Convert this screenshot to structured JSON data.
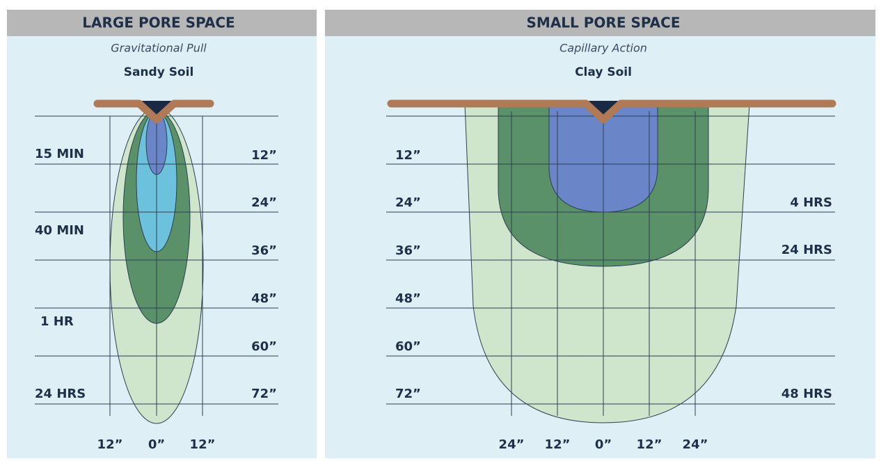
{
  "panels": [
    {
      "header": "LARGE PORE SPACE",
      "subtitle": "Gravitational Pull",
      "soil": "Sandy Soil",
      "time_labels": [
        "15 MIN",
        "40 MIN",
        "1 HR",
        "24 HRS"
      ],
      "depth_labels": [
        "12”",
        "24”",
        "36”",
        "48”",
        "60”",
        "72”"
      ],
      "width_labels": [
        "12”",
        "0”",
        "12”"
      ]
    },
    {
      "header": "SMALL PORE SPACE",
      "subtitle": "Capillary Action",
      "soil": "Clay Soil",
      "time_labels": [
        "4 HRS",
        "24 HRS",
        "48 HRS"
      ],
      "depth_labels": [
        "12”",
        "24”",
        "36”",
        "48”",
        "60”",
        "72”"
      ],
      "width_labels": [
        "24”",
        "12”",
        "0”",
        "12”",
        "24”"
      ]
    }
  ]
}
